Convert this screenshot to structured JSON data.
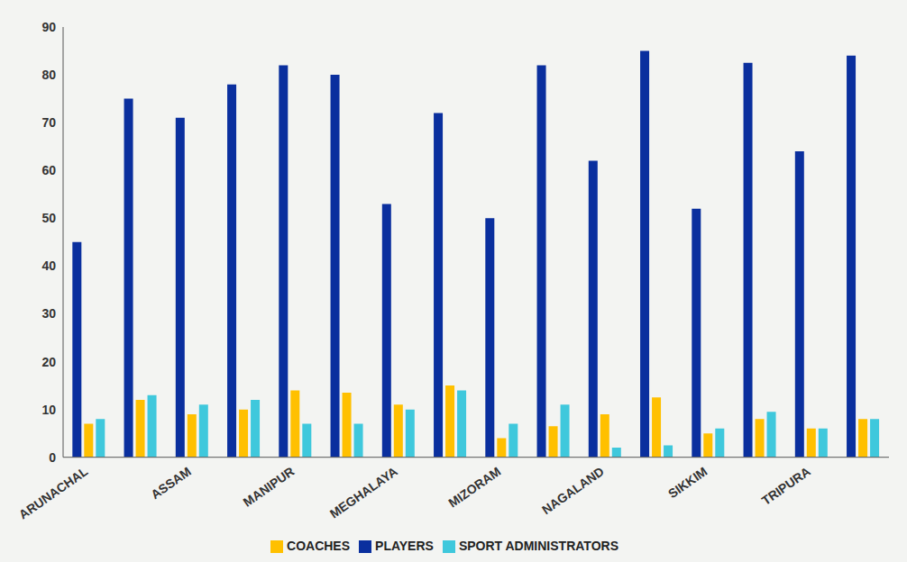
{
  "chart_data": {
    "type": "bar",
    "categories": [
      "ARUNACHAL",
      null,
      "ASSAM",
      null,
      "MANIPUR",
      null,
      "MEGHALAYA",
      null,
      "MIZORAM",
      null,
      "NAGALAND",
      null,
      "SIKKIM",
      null,
      "TRIPURA",
      null
    ],
    "series": [
      {
        "name": "PLAYERS",
        "color": "#0a2f9e",
        "values": [
          45,
          75,
          71,
          78,
          82,
          80,
          53,
          72,
          50,
          82,
          62,
          85,
          52,
          82.5,
          64,
          84
        ]
      },
      {
        "name": "COACHES",
        "color": "#ffc000",
        "values": [
          7,
          12,
          9,
          10,
          14,
          13.5,
          11,
          15,
          4,
          6.5,
          9,
          12.5,
          5,
          8,
          6,
          8
        ]
      },
      {
        "name": "SPORT ADMINISTRATORS",
        "color": "#3fc8dc",
        "values": [
          8,
          13,
          11,
          12,
          7,
          7,
          10,
          14,
          7,
          11,
          2,
          2.5,
          6,
          9.5,
          6,
          8
        ]
      }
    ],
    "ylim": [
      0,
      90
    ],
    "yticks": [
      0,
      10,
      20,
      30,
      40,
      50,
      60,
      70,
      80,
      90
    ],
    "grid": false,
    "legend": "bottom"
  }
}
